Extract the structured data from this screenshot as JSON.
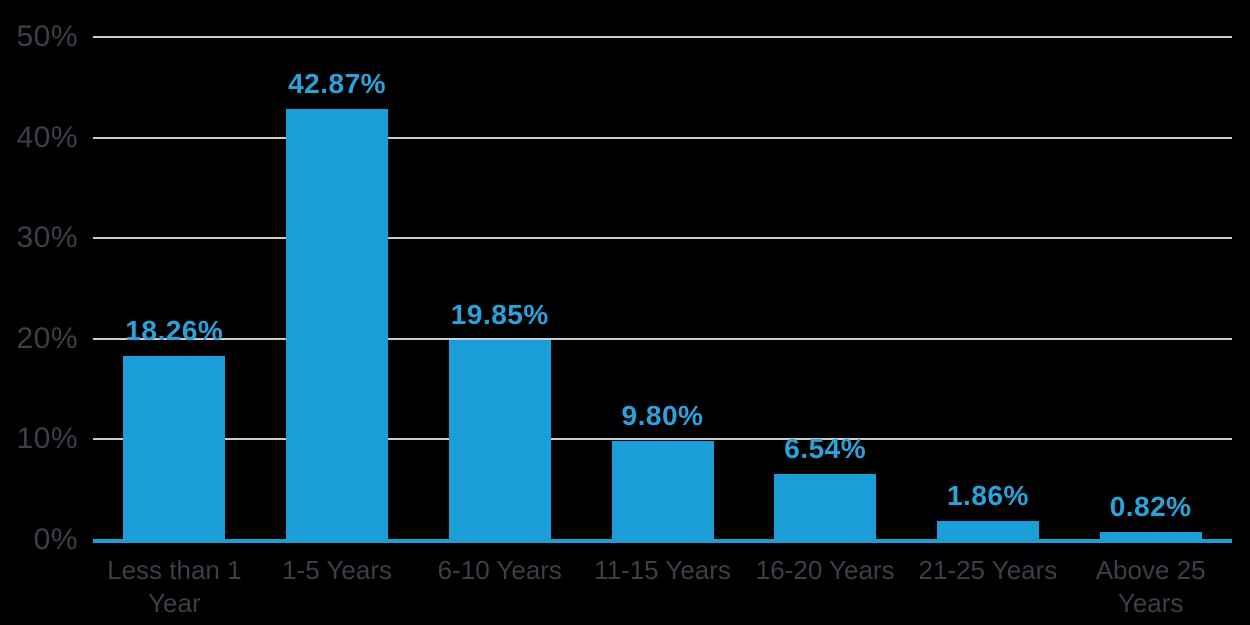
{
  "chart_data": {
    "type": "bar",
    "title": "",
    "xlabel": "",
    "ylabel": "",
    "categories": [
      "Less than 1 Year",
      "1-5 Years",
      "6-10 Years",
      "11-15 Years",
      "16-20 Years",
      "21-25 Years",
      "Above 25 Years"
    ],
    "values": [
      18.26,
      42.87,
      19.85,
      9.8,
      6.54,
      1.86,
      0.82
    ],
    "data_labels": [
      "18.26%",
      "42.87%",
      "19.85%",
      "9.80%",
      "6.54%",
      "1.86%",
      "0.82%"
    ],
    "y_ticks": [
      {
        "value": 0,
        "label": "0%"
      },
      {
        "value": 10,
        "label": "10%"
      },
      {
        "value": 20,
        "label": "20%"
      },
      {
        "value": 30,
        "label": "30%"
      },
      {
        "value": 40,
        "label": "40%"
      },
      {
        "value": 50,
        "label": "50%"
      }
    ],
    "ylim": [
      0,
      50
    ],
    "grid": "horizontal",
    "legend_position": "none",
    "colors": {
      "background": "#000000",
      "bar": "#1B9ED8",
      "data_label": "#2AA2DB",
      "gridline": "#C9CACB",
      "baseline": "#1B9ED8",
      "axis_text": "#3A3F48"
    }
  }
}
